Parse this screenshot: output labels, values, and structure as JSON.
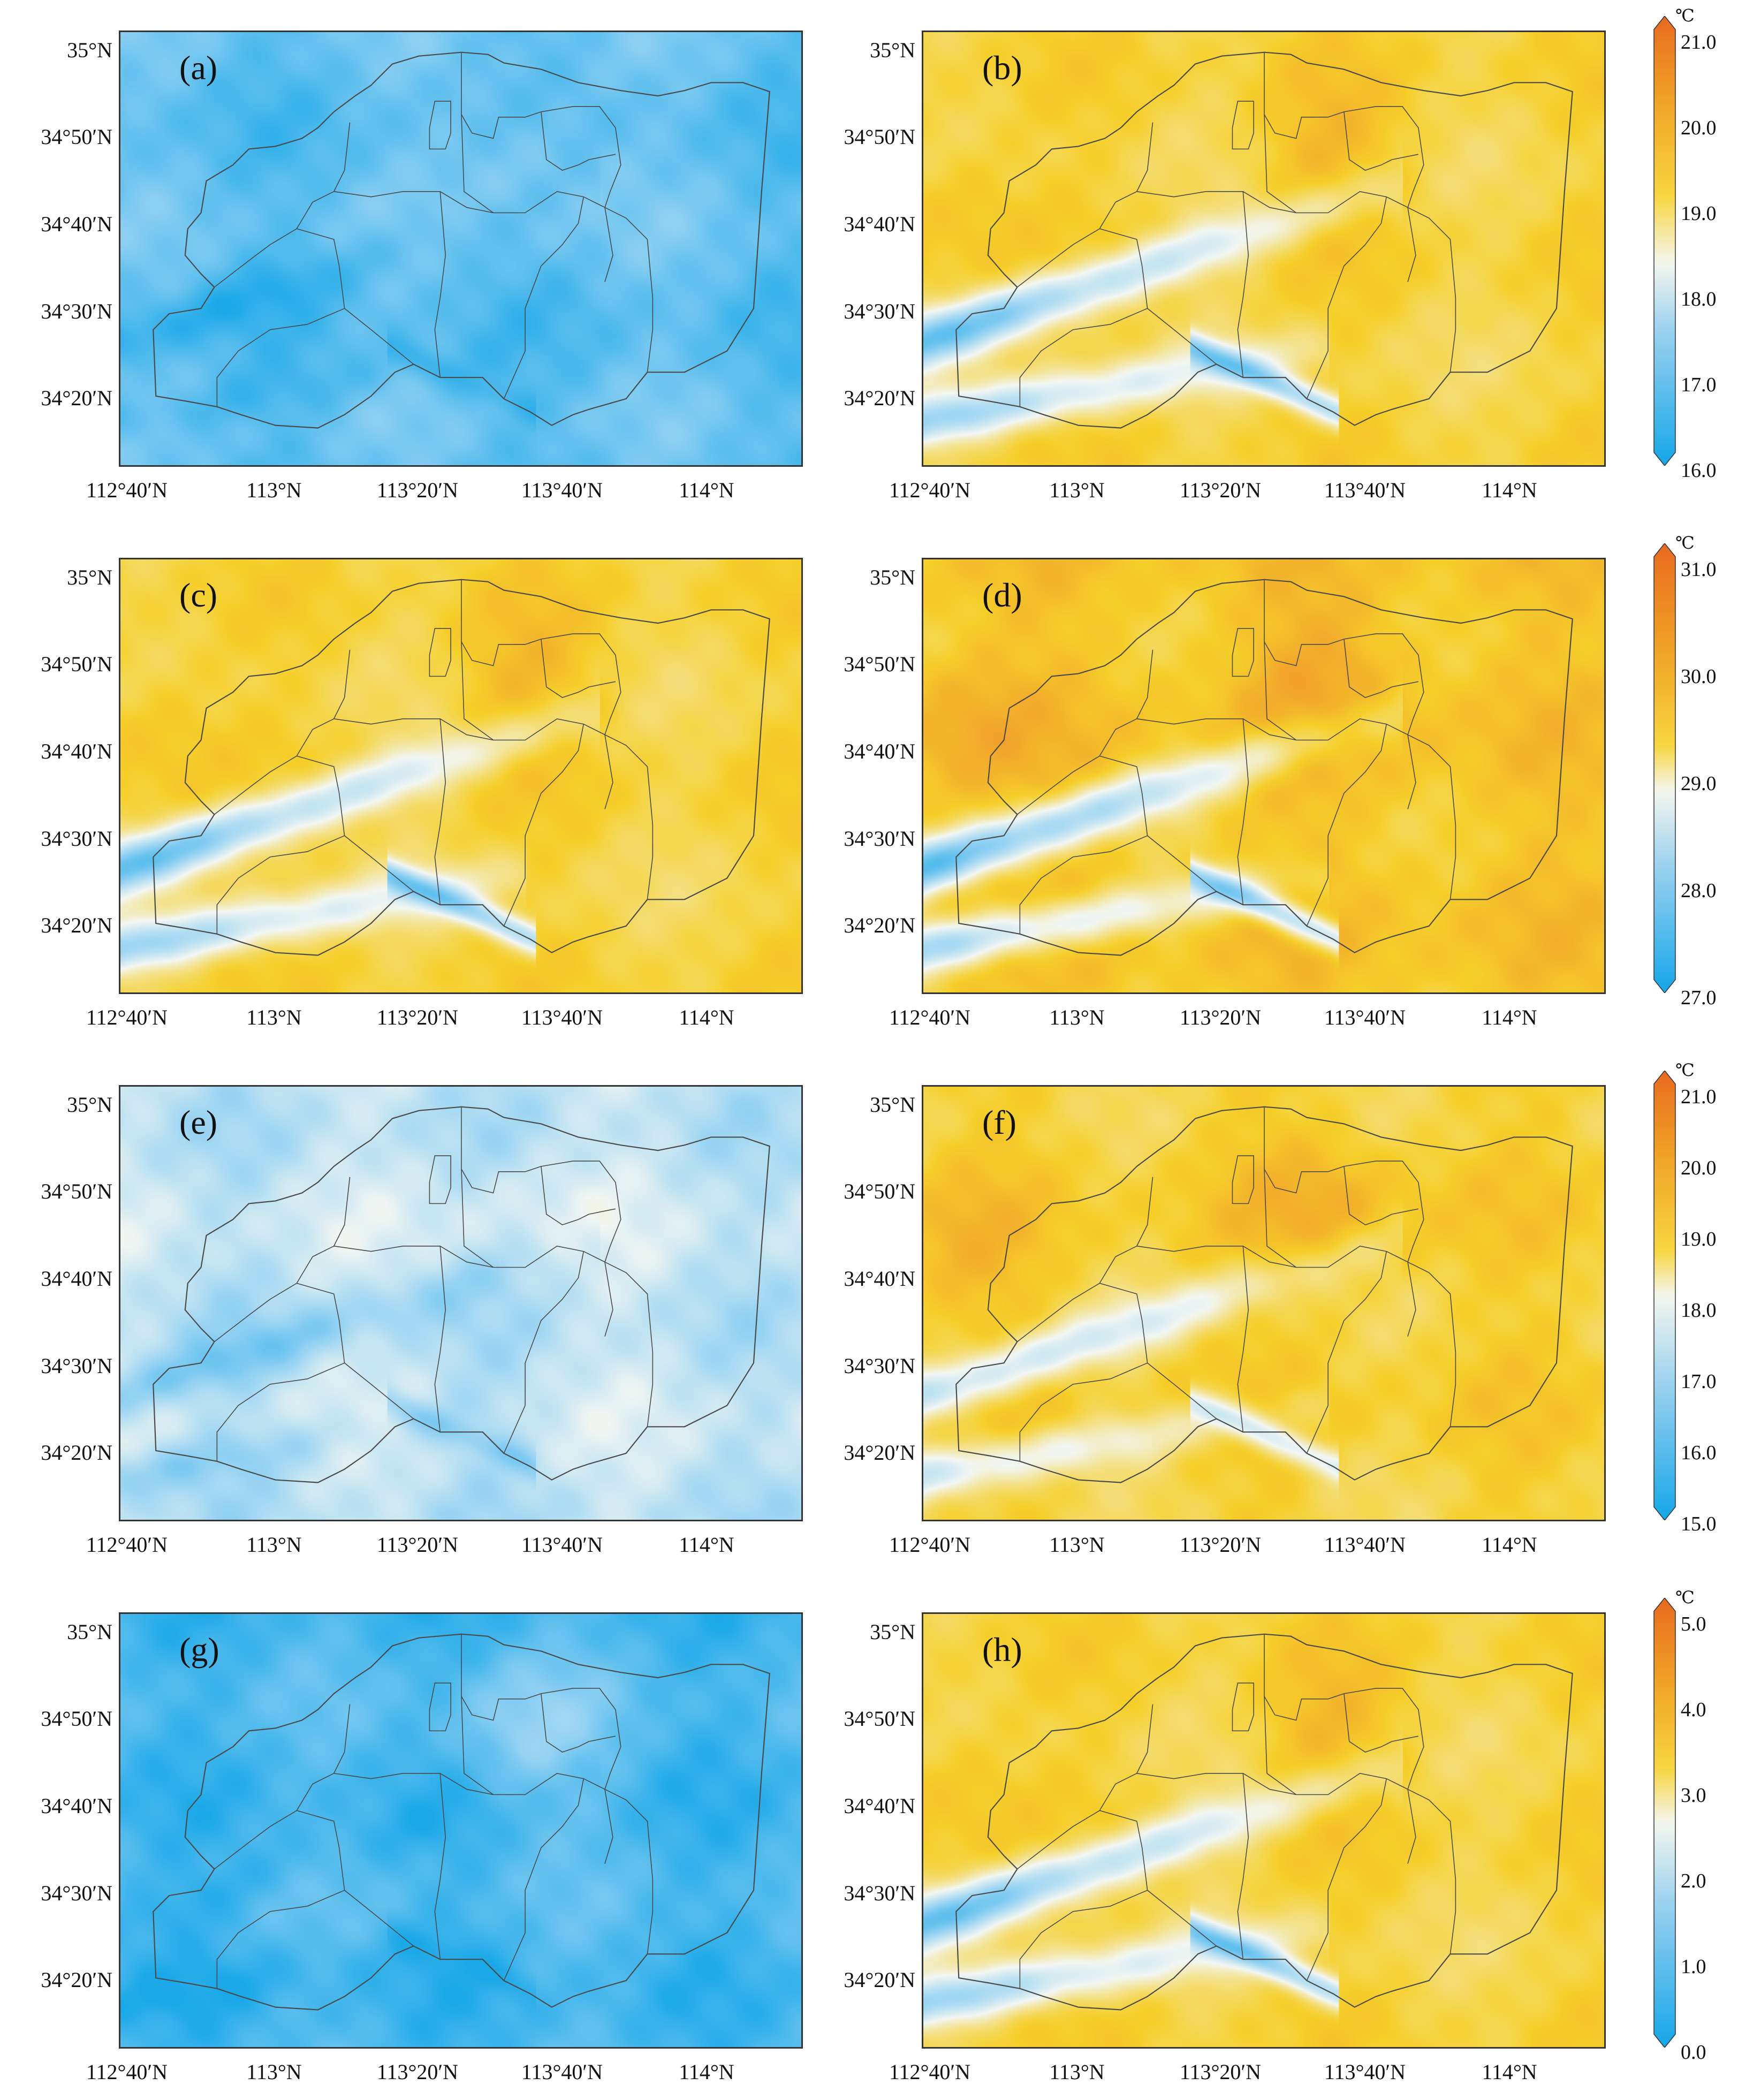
{
  "figure": {
    "lat_labels": [
      "35°N",
      "34°50′N",
      "34°40′N",
      "34°30′N",
      "34°20′N"
    ],
    "lon_labels": [
      "112°40′N",
      "113°N",
      "113°20′N",
      "113°40′N",
      "114°N"
    ],
    "panels": [
      {
        "id": "a",
        "label": "(a)",
        "palette": "cool"
      },
      {
        "id": "b",
        "label": "(b)",
        "palette": "warm"
      },
      {
        "id": "c",
        "label": "(c)",
        "palette": "warm"
      },
      {
        "id": "d",
        "label": "(d)",
        "palette": "warm-hot"
      },
      {
        "id": "e",
        "label": "(e)",
        "palette": "cool-light"
      },
      {
        "id": "f",
        "label": "(f)",
        "palette": "warm-mid"
      },
      {
        "id": "g",
        "label": "(g)",
        "palette": "cool-deep"
      },
      {
        "id": "h",
        "label": "(h)",
        "palette": "warm"
      }
    ],
    "colorbars": [
      {
        "unit": "℃",
        "ticks": [
          "21.0",
          "20.0",
          "19.0",
          "18.0",
          "17.0",
          "16.0"
        ]
      },
      {
        "unit": "℃",
        "ticks": [
          "31.0",
          "30.0",
          "29.0",
          "28.0",
          "27.0"
        ]
      },
      {
        "unit": "℃",
        "ticks": [
          "21.0",
          "20.0",
          "19.0",
          "18.0",
          "17.0",
          "16.0",
          "15.0"
        ]
      },
      {
        "unit": "℃",
        "ticks": [
          "5.0",
          "4.0",
          "3.0",
          "2.0",
          "1.0",
          "0.0"
        ]
      }
    ],
    "colors": {
      "cold": "#1aa8e8",
      "cool": "#8fd0f2",
      "neutral": "#f2f6f2",
      "warm": "#f5cf2a",
      "hot": "#f08a2c",
      "boundary": "#4a4a4a"
    }
  }
}
